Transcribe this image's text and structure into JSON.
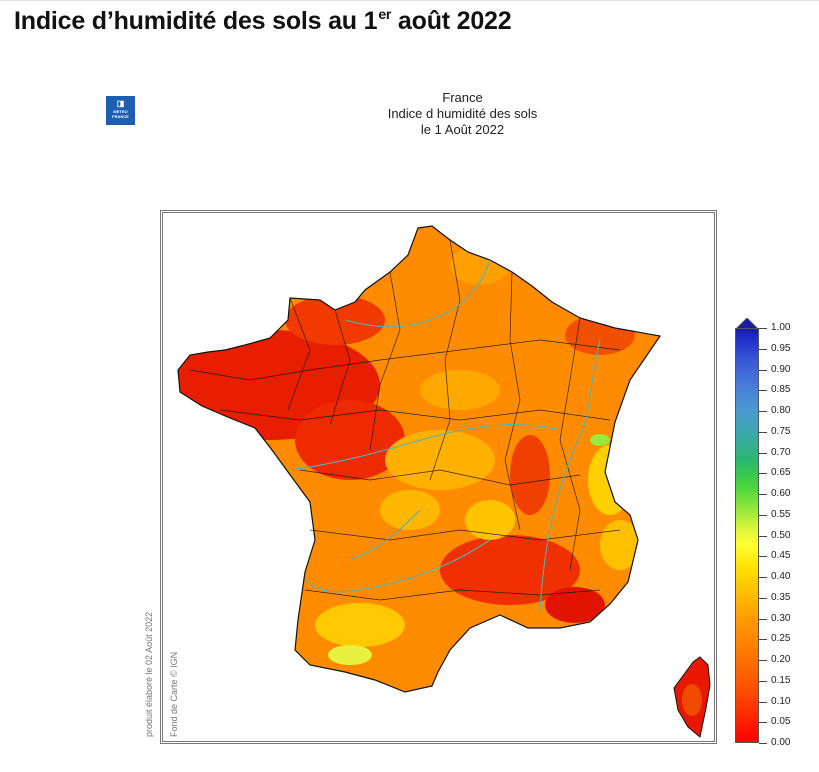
{
  "page": {
    "title": "Indice d’humidité des sols au 1",
    "title_superscript": "er",
    "title_suffix": " août 2022"
  },
  "map_header": {
    "line1": "France",
    "line2": "Indice d humidité des sols",
    "line3": "le 1 Août 2022"
  },
  "logo": {
    "line1": "METEO",
    "line2": "FRANCE"
  },
  "credits": {
    "produced": "produit élaboré le 02 Août 2022",
    "basemap": "Fond de Carte © IGN"
  },
  "legend": {
    "labels": [
      "1.00",
      "0.95",
      "0.90",
      "0.85",
      "0.80",
      "0.75",
      "0.70",
      "0.65",
      "0.60",
      "0.55",
      "0.50",
      "0.45",
      "0.40",
      "0.35",
      "0.30",
      "0.25",
      "0.20",
      "0.15",
      "0.10",
      "0.05",
      "0.00"
    ],
    "colors": {
      "very_dry": "#e80000",
      "dry": "#ff6a00",
      "moderate": "#ffa600",
      "medium": "#ffd900",
      "wet": "#3ab04a",
      "very_wet": "#1a1aaa"
    }
  }
}
